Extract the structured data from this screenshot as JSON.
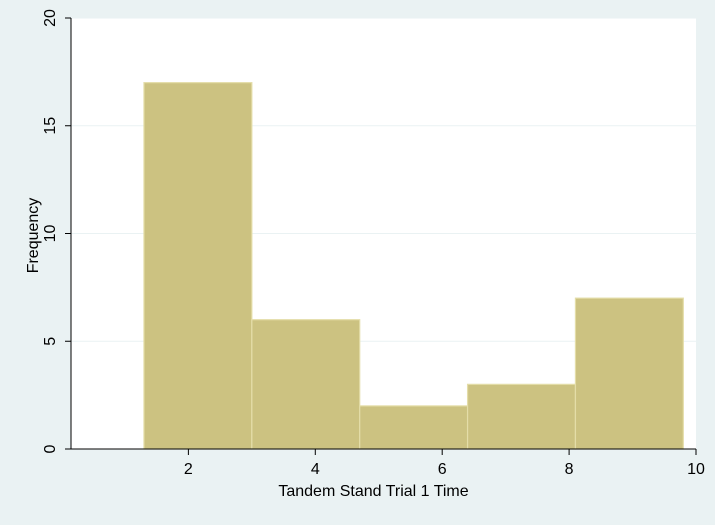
{
  "chart_data": {
    "type": "bar",
    "subtype": "histogram",
    "title": "",
    "xlabel": "Tandem Stand Trial 1 Time",
    "ylabel": "Frequency",
    "xlim": [
      0.15,
      10.0
    ],
    "ylim": [
      0,
      20
    ],
    "x_ticks": [
      2,
      4,
      6,
      8,
      10
    ],
    "y_ticks": [
      0,
      5,
      10,
      15,
      20
    ],
    "bins": [
      {
        "start": 1.3,
        "end": 3.0,
        "value": 17
      },
      {
        "start": 3.0,
        "end": 4.7,
        "value": 6
      },
      {
        "start": 4.7,
        "end": 6.4,
        "value": 2
      },
      {
        "start": 6.4,
        "end": 8.1,
        "value": 3
      },
      {
        "start": 8.1,
        "end": 9.8,
        "value": 7
      }
    ],
    "grid": true,
    "legend": "none",
    "colors": {
      "bar_fill": "#CCC281",
      "bar_edge": "#E4DDA8",
      "plot_background": "#FFFFFF",
      "outer_background": "#EAF2F3",
      "gridline": "#EAF2F3"
    }
  }
}
